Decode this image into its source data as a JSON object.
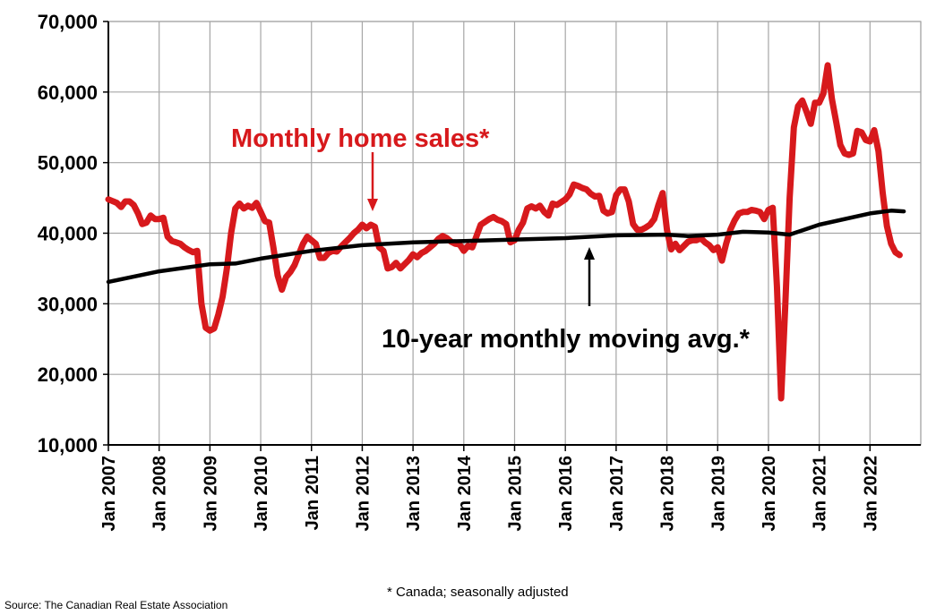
{
  "chart_data": {
    "type": "line",
    "x_ticks": [
      "Jan 2007",
      "Jan 2008",
      "Jan 2009",
      "Jan 2010",
      "Jan 2011",
      "Jan 2012",
      "Jan 2013",
      "Jan 2014",
      "Jan 2015",
      "Jan 2016",
      "Jan 2017",
      "Jan 2018",
      "Jan 2019",
      "Jan 2020",
      "Jan 2021",
      "Jan 2022"
    ],
    "y_ticks": [
      "10,000",
      "20,000",
      "30,000",
      "40,000",
      "50,000",
      "60,000",
      "70,000"
    ],
    "ylim": [
      10000,
      70000
    ],
    "xlim": [
      "2007-01",
      "2022-12"
    ],
    "grid": true,
    "series": [
      {
        "name": "Monthly home sales*",
        "color": "#d7191c",
        "points": [
          [
            "2007-01",
            44800
          ],
          [
            "2007-03",
            44300
          ],
          [
            "2007-04",
            43700
          ],
          [
            "2007-05",
            44500
          ],
          [
            "2007-06",
            44500
          ],
          [
            "2007-07",
            44000
          ],
          [
            "2007-08",
            42800
          ],
          [
            "2007-09",
            41300
          ],
          [
            "2007-10",
            41500
          ],
          [
            "2007-11",
            42500
          ],
          [
            "2007-12",
            42000
          ],
          [
            "2008-01",
            42000
          ],
          [
            "2008-02",
            42200
          ],
          [
            "2008-03",
            39500
          ],
          [
            "2008-04",
            38900
          ],
          [
            "2008-05",
            38700
          ],
          [
            "2008-06",
            38500
          ],
          [
            "2008-07",
            38000
          ],
          [
            "2008-08",
            37600
          ],
          [
            "2008-09",
            37300
          ],
          [
            "2008-10",
            37500
          ],
          [
            "2008-11",
            30000
          ],
          [
            "2008-12",
            26600
          ],
          [
            "2009-01",
            26200
          ],
          [
            "2009-02",
            26500
          ],
          [
            "2009-03",
            28500
          ],
          [
            "2009-04",
            31000
          ],
          [
            "2009-05",
            35000
          ],
          [
            "2009-06",
            40000
          ],
          [
            "2009-07",
            43500
          ],
          [
            "2009-08",
            44200
          ],
          [
            "2009-09",
            43500
          ],
          [
            "2009-10",
            43900
          ],
          [
            "2009-11",
            43600
          ],
          [
            "2009-12",
            44300
          ],
          [
            "2010-01",
            43000
          ],
          [
            "2010-02",
            41700
          ],
          [
            "2010-03",
            41500
          ],
          [
            "2010-04",
            38000
          ],
          [
            "2010-05",
            34000
          ],
          [
            "2010-06",
            32000
          ],
          [
            "2010-07",
            33800
          ],
          [
            "2010-08",
            34500
          ],
          [
            "2010-09",
            35500
          ],
          [
            "2010-10",
            37000
          ],
          [
            "2010-11",
            38500
          ],
          [
            "2010-12",
            39500
          ],
          [
            "2011-01",
            39000
          ],
          [
            "2011-02",
            38500
          ],
          [
            "2011-03",
            36500
          ],
          [
            "2011-04",
            36500
          ],
          [
            "2011-05",
            37200
          ],
          [
            "2011-06",
            37500
          ],
          [
            "2011-07",
            37400
          ],
          [
            "2011-08",
            38100
          ],
          [
            "2011-09",
            38700
          ],
          [
            "2011-10",
            39300
          ],
          [
            "2011-11",
            40000
          ],
          [
            "2011-12",
            40500
          ],
          [
            "2012-01",
            41200
          ],
          [
            "2012-02",
            40700
          ],
          [
            "2012-03",
            41200
          ],
          [
            "2012-04",
            40900
          ],
          [
            "2012-05",
            38000
          ],
          [
            "2012-06",
            37500
          ],
          [
            "2012-07",
            35000
          ],
          [
            "2012-08",
            35200
          ],
          [
            "2012-09",
            35800
          ],
          [
            "2012-10",
            35000
          ],
          [
            "2012-11",
            35600
          ],
          [
            "2012-12",
            36200
          ],
          [
            "2013-01",
            37000
          ],
          [
            "2013-02",
            36600
          ],
          [
            "2013-03",
            37200
          ],
          [
            "2013-04",
            37500
          ],
          [
            "2013-05",
            38000
          ],
          [
            "2013-06",
            38500
          ],
          [
            "2013-07",
            39200
          ],
          [
            "2013-08",
            39600
          ],
          [
            "2013-09",
            39300
          ],
          [
            "2013-10",
            38800
          ],
          [
            "2013-11",
            38500
          ],
          [
            "2013-12",
            38400
          ],
          [
            "2014-01",
            37500
          ],
          [
            "2014-02",
            38200
          ],
          [
            "2014-03",
            38000
          ],
          [
            "2014-04",
            39600
          ],
          [
            "2014-05",
            41200
          ],
          [
            "2014-06",
            41600
          ],
          [
            "2014-07",
            42000
          ],
          [
            "2014-08",
            42300
          ],
          [
            "2014-09",
            41900
          ],
          [
            "2014-10",
            41700
          ],
          [
            "2014-11",
            41300
          ],
          [
            "2014-12",
            38700
          ],
          [
            "2015-01",
            39000
          ],
          [
            "2015-02",
            40500
          ],
          [
            "2015-03",
            41500
          ],
          [
            "2015-04",
            43500
          ],
          [
            "2015-05",
            43800
          ],
          [
            "2015-06",
            43500
          ],
          [
            "2015-07",
            43900
          ],
          [
            "2015-08",
            43000
          ],
          [
            "2015-09",
            42500
          ],
          [
            "2015-10",
            44200
          ],
          [
            "2015-11",
            44000
          ],
          [
            "2015-12",
            44400
          ],
          [
            "2016-01",
            44800
          ],
          [
            "2016-02",
            45500
          ],
          [
            "2016-03",
            46900
          ],
          [
            "2016-04",
            46700
          ],
          [
            "2016-05",
            46400
          ],
          [
            "2016-06",
            46200
          ],
          [
            "2016-07",
            45600
          ],
          [
            "2016-08",
            45200
          ],
          [
            "2016-09",
            45300
          ],
          [
            "2016-10",
            43200
          ],
          [
            "2016-11",
            42800
          ],
          [
            "2016-12",
            43000
          ],
          [
            "2017-01",
            45400
          ],
          [
            "2017-02",
            46200
          ],
          [
            "2017-03",
            46200
          ],
          [
            "2017-04",
            44500
          ],
          [
            "2017-05",
            41300
          ],
          [
            "2017-06",
            40500
          ],
          [
            "2017-07",
            40500
          ],
          [
            "2017-08",
            40800
          ],
          [
            "2017-09",
            41200
          ],
          [
            "2017-10",
            42000
          ],
          [
            "2017-11",
            44000
          ],
          [
            "2017-12",
            45700
          ],
          [
            "2018-01",
            40500
          ],
          [
            "2018-02",
            37700
          ],
          [
            "2018-03",
            38500
          ],
          [
            "2018-04",
            37600
          ],
          [
            "2018-05",
            38200
          ],
          [
            "2018-06",
            38800
          ],
          [
            "2018-07",
            39000
          ],
          [
            "2018-08",
            39000
          ],
          [
            "2018-09",
            39300
          ],
          [
            "2018-10",
            38700
          ],
          [
            "2018-11",
            38300
          ],
          [
            "2018-12",
            37600
          ],
          [
            "2019-01",
            38000
          ],
          [
            "2019-02",
            36100
          ],
          [
            "2019-03",
            38500
          ],
          [
            "2019-04",
            40500
          ],
          [
            "2019-05",
            41800
          ],
          [
            "2019-06",
            42800
          ],
          [
            "2019-07",
            43000
          ],
          [
            "2019-08",
            43000
          ],
          [
            "2019-09",
            43300
          ],
          [
            "2019-10",
            43200
          ],
          [
            "2019-11",
            43000
          ],
          [
            "2019-12",
            42000
          ],
          [
            "2020-01",
            43300
          ],
          [
            "2020-02",
            43600
          ],
          [
            "2020-03",
            32500
          ],
          [
            "2020-04",
            16600
          ],
          [
            "2020-05",
            30000
          ],
          [
            "2020-06",
            45000
          ],
          [
            "2020-07",
            55000
          ],
          [
            "2020-08",
            58000
          ],
          [
            "2020-09",
            58800
          ],
          [
            "2020-10",
            57200
          ],
          [
            "2020-11",
            55500
          ],
          [
            "2020-12",
            58500
          ],
          [
            "2021-01",
            58500
          ],
          [
            "2021-02",
            59800
          ],
          [
            "2021-03",
            63800
          ],
          [
            "2021-04",
            59000
          ],
          [
            "2021-05",
            55800
          ],
          [
            "2021-06",
            52500
          ],
          [
            "2021-07",
            51300
          ],
          [
            "2021-08",
            51100
          ],
          [
            "2021-09",
            51300
          ],
          [
            "2021-10",
            54500
          ],
          [
            "2021-11",
            54300
          ],
          [
            "2021-12",
            53200
          ],
          [
            "2022-01",
            53000
          ],
          [
            "2022-02",
            54600
          ],
          [
            "2022-03",
            51600
          ],
          [
            "2022-04",
            45700
          ],
          [
            "2022-05",
            41000
          ],
          [
            "2022-06",
            38500
          ],
          [
            "2022-07",
            37300
          ],
          [
            "2022-08",
            36900
          ]
        ]
      },
      {
        "name": "10-year monthly moving avg.*",
        "color": "#000000",
        "points": [
          [
            "2007-01",
            33100
          ],
          [
            "2008-01",
            34600
          ],
          [
            "2009-01",
            35600
          ],
          [
            "2009-07",
            35700
          ],
          [
            "2010-01",
            36400
          ],
          [
            "2011-01",
            37500
          ],
          [
            "2012-01",
            38300
          ],
          [
            "2013-01",
            38700
          ],
          [
            "2014-01",
            38900
          ],
          [
            "2015-01",
            39100
          ],
          [
            "2016-01",
            39300
          ],
          [
            "2017-01",
            39700
          ],
          [
            "2018-01",
            39800
          ],
          [
            "2018-06",
            39600
          ],
          [
            "2019-01",
            39800
          ],
          [
            "2019-07",
            40200
          ],
          [
            "2020-01",
            40100
          ],
          [
            "2020-06",
            39800
          ],
          [
            "2021-01",
            41200
          ],
          [
            "2022-01",
            42800
          ],
          [
            "2022-06",
            43200
          ],
          [
            "2022-09",
            43100
          ]
        ]
      }
    ]
  },
  "annotations": {
    "monthly_label": "Monthly home sales*",
    "avg_label": "10-year monthly moving avg.*"
  },
  "footnote": "* Canada; seasonally adjusted",
  "source": "Source: The Canadian Real Estate Association"
}
